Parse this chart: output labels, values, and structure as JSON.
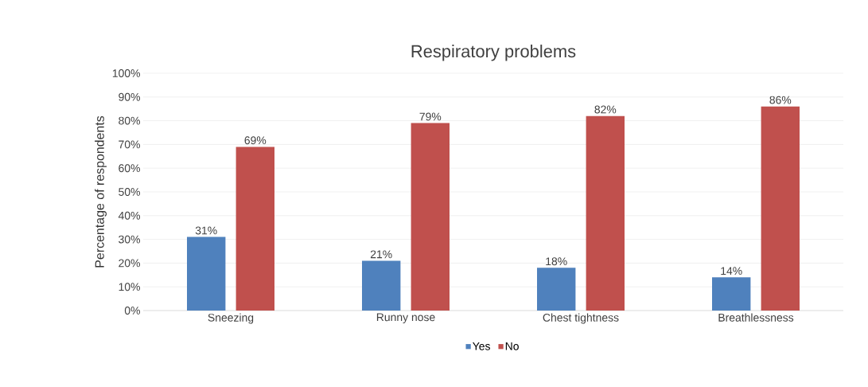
{
  "chart_data": {
    "type": "bar",
    "title": "Respiratory problems",
    "ylabel": "Percentage of respondents",
    "categories": [
      "Sneezing",
      "Runny nose",
      "Chest tightness",
      "Breathlessness"
    ],
    "series": [
      {
        "name": "Yes",
        "color": "#4f81bd",
        "values": [
          31,
          21,
          18,
          14
        ],
        "value_labels": [
          "31%",
          "21%",
          "18%",
          "14%"
        ]
      },
      {
        "name": "No",
        "color": "#c0504d",
        "values": [
          69,
          79,
          82,
          86
        ],
        "value_labels": [
          "69%",
          "79%",
          "82%",
          "86%"
        ]
      }
    ],
    "ylim": [
      0,
      100
    ],
    "yticks": [
      {
        "value": 0,
        "label": "0%"
      },
      {
        "value": 10,
        "label": "10%"
      },
      {
        "value": 20,
        "label": "20%"
      },
      {
        "value": 30,
        "label": "30%"
      },
      {
        "value": 40,
        "label": "40%"
      },
      {
        "value": 50,
        "label": "50%"
      },
      {
        "value": 60,
        "label": "60%"
      },
      {
        "value": 70,
        "label": "70%"
      },
      {
        "value": 80,
        "label": "80%"
      },
      {
        "value": 90,
        "label": "90%"
      },
      {
        "value": 100,
        "label": "100%"
      }
    ],
    "grid": "y",
    "legend": "bottom"
  }
}
